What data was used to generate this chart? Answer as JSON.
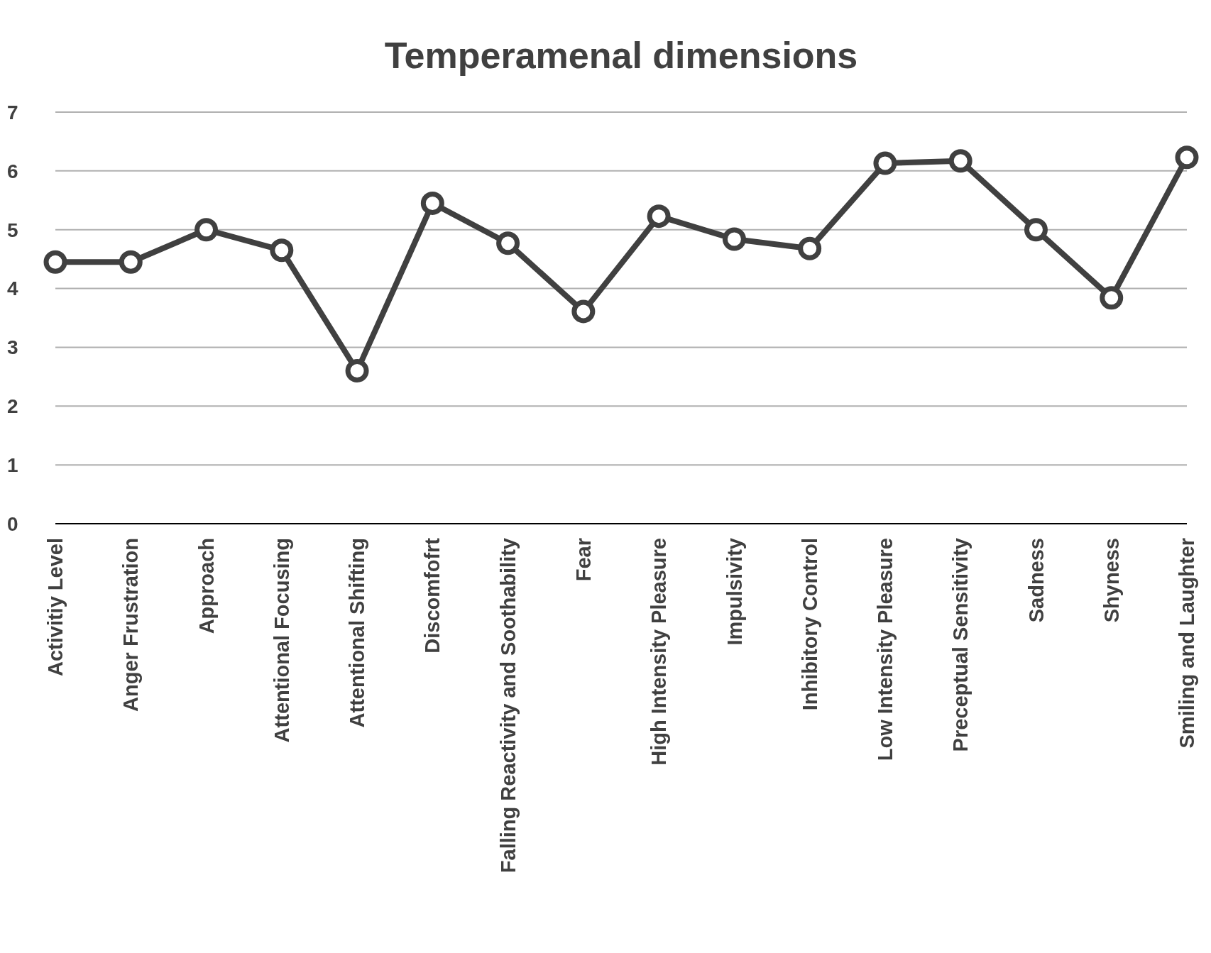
{
  "chart_data": {
    "type": "line",
    "title": "Temperamenal dimensions",
    "categories": [
      "Activitiy Level",
      "Anger Frustration",
      "Approach",
      "Attentional Focusing",
      "Attentional Shifting",
      "Discomfofrt",
      "Falling Reactivity and Soothability",
      "Fear",
      "High Intensity Pleasure",
      "Impulsivity",
      "Inhibitory Control",
      "Low Intensity Pleasure",
      "Preceptual Sensitivity",
      "Sadness",
      "Shyness",
      "Smiling and Laughter"
    ],
    "series": [
      {
        "color": "#404040",
        "values": [
          4.45,
          4.45,
          5.0,
          4.65,
          2.6,
          5.45,
          4.77,
          3.61,
          5.23,
          4.84,
          4.68,
          6.13,
          6.17,
          5.0,
          3.84,
          6.23
        ]
      }
    ],
    "ylim": [
      0,
      7
    ],
    "yticks": [
      0,
      1,
      2,
      3,
      4,
      5,
      6,
      7
    ],
    "grid": "y",
    "marker": "circle",
    "line_style": "solid"
  }
}
